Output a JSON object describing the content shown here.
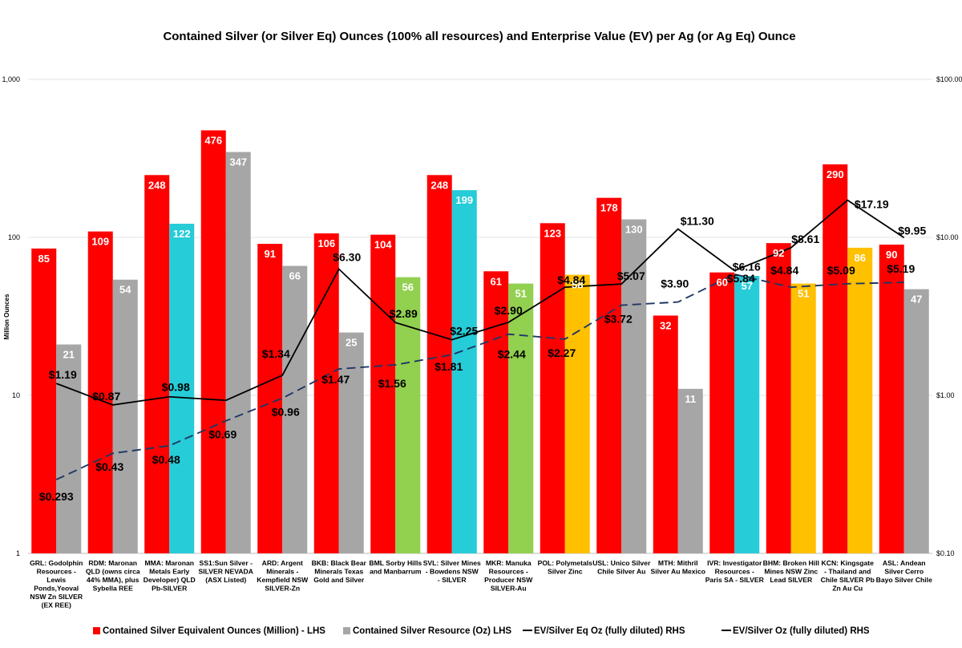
{
  "chart_data": {
    "type": "bar",
    "title": "Contained Silver (or Silver Eq) Ounces (100% all resources) and Enterprise Value (EV) per Ag (or Ag Eq) Ounce",
    "ylabel": "Million Ounces",
    "y_scale": "log",
    "ylim": [
      1,
      1000
    ],
    "y_ticks": [
      "1",
      "10",
      "100",
      "1,000"
    ],
    "y2_scale": "log",
    "y2lim": [
      0.1,
      100
    ],
    "y2_ticks": [
      "$0.10",
      "$1.00",
      "$10.00",
      "$100.00"
    ],
    "categories": [
      [
        "GRL: Godolphin",
        "Resources -",
        "Lewis",
        "Ponds,Yeoval",
        "NSW Zn SILVER",
        "(EX REE)"
      ],
      [
        "RDM: Maronan",
        "QLD (owns circa",
        "44% MMA), plus",
        "Sybella REE"
      ],
      [
        "MMA: Maronan",
        "Metals Early",
        "Developer) QLD",
        "Pb-SILVER"
      ],
      [
        "SS1:Sun Silver -",
        "SILVER  NEVADA",
        "(ASX Listed)"
      ],
      [
        "ARD: Argent",
        "Minerals -",
        "Kempfield  NSW",
        "SILVER-Zn"
      ],
      [
        "BKB: Black Bear",
        "Minerals Texas",
        "Gold and Silver"
      ],
      [
        "BML Sorby Hills",
        "and Manbarrum"
      ],
      [
        "SVL: Silver Mines",
        "- Bowdens NSW",
        "- SILVER"
      ],
      [
        "MKR: Manuka",
        "Resources -",
        "Producer NSW",
        "SILVER-Au"
      ],
      [
        "POL: Polymetals",
        "Silver Zinc"
      ],
      [
        "USL: Unico Silver",
        "Chile Silver Au"
      ],
      [
        "MTH: Mithril",
        "Silver Au Mexico"
      ],
      [
        "IVR: Investigator",
        "Resources -",
        "Paris SA - SILVER"
      ],
      [
        "BHM: Broken Hill",
        "Mines NSW Zinc",
        "Lead SILVER"
      ],
      [
        "KCN: Kingsgate",
        "- Thailand and",
        "Chile SILVER Pb",
        "Zn Au Cu"
      ],
      [
        "ASL: Andean",
        "Silver Cerro",
        "Bayo Silver Chile"
      ]
    ],
    "series": [
      {
        "name": "Contained Silver Equivalent Ounces (Million) - LHS",
        "type": "bar",
        "color": "#ff0000",
        "values": [
          85,
          109,
          248,
          476,
          91,
          106,
          104,
          248,
          61,
          123,
          178,
          32,
          60,
          92,
          290,
          90
        ],
        "labels": [
          "85",
          "109",
          "248",
          "476",
          "91",
          "106",
          "104",
          "248",
          "61",
          "123",
          "178",
          "32",
          "60",
          "92",
          "290",
          "90"
        ]
      },
      {
        "name": "Contained Silver Resource (Oz) LHS",
        "type": "bar",
        "legend_color": "#a6a6a6",
        "values": [
          21,
          54,
          122,
          347,
          66,
          25,
          56,
          199,
          51,
          58,
          130,
          11,
          57,
          51,
          86,
          47
        ],
        "labels": [
          "21",
          "54",
          "122",
          "347",
          "66",
          "25",
          "56",
          "199",
          "51",
          "58",
          "130",
          "11",
          "57",
          "51",
          "86",
          "47"
        ],
        "colors": [
          "#a6a6a6",
          "#a6a6a6",
          "#26ccd8",
          "#a6a6a6",
          "#a6a6a6",
          "#a6a6a6",
          "#92d050",
          "#26ccd8",
          "#92d050",
          "#ffc000",
          "#a6a6a6",
          "#a6a6a6",
          "#26ccd8",
          "#ffc000",
          "#ffc000",
          "#a6a6a6"
        ]
      },
      {
        "name": "EV/Silver Eq Oz (fully diluted) RHS",
        "type": "line",
        "color": "#000000",
        "dash": "solid",
        "values": [
          1.19,
          0.87,
          0.98,
          0.93,
          1.34,
          6.3,
          2.89,
          2.25,
          2.9,
          4.84,
          5.07,
          11.3,
          6.16,
          8.61,
          17.19,
          9.95
        ],
        "labels": [
          "$1.19",
          "$0.87",
          "$0.98",
          "",
          "$1.34",
          "$6.30",
          "$2.89",
          "$2.25",
          "$2.90",
          "$4.84",
          "$5.07",
          "$11.30",
          "$6.16",
          "$8.61",
          "$17.19",
          "$9.95"
        ]
      },
      {
        "name": "EV/Silver Oz (fully diluted) RHS",
        "type": "line",
        "color": "#1f3864",
        "dash": "dashed",
        "values": [
          0.293,
          0.43,
          0.48,
          0.69,
          0.96,
          1.47,
          1.56,
          1.81,
          2.44,
          2.27,
          3.72,
          3.9,
          5.84,
          4.84,
          5.09,
          5.19
        ],
        "labels": [
          "$0.293",
          "$0.43",
          "$0.48",
          "$0.69",
          "$0.96",
          "$1.47",
          "$1.56",
          "$1.81",
          "$2.44",
          "$2.27",
          "$3.72",
          "$3.90",
          "$5.84",
          "$4.84",
          "$5.09",
          "$5.19"
        ]
      }
    ],
    "legend_position": "bottom"
  }
}
